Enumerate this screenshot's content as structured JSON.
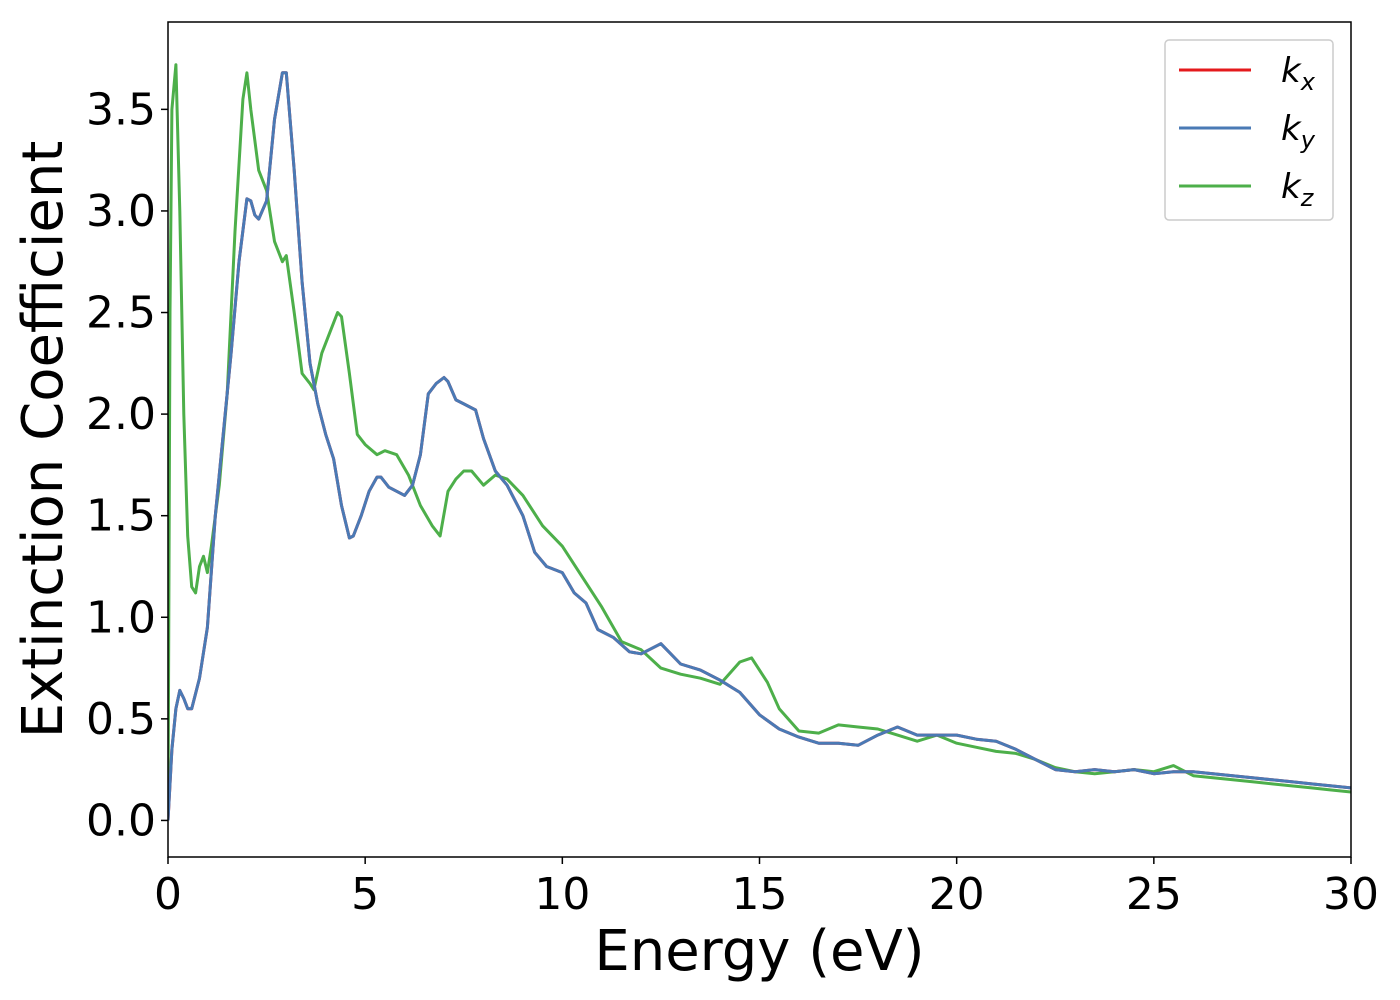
{
  "chart_data": {
    "type": "line",
    "title": "",
    "xlabel": "Energy (eV)",
    "ylabel": "Extinction Coefficient",
    "xlim": [
      0,
      30
    ],
    "ylim": [
      -0.18,
      3.93
    ],
    "xticks": [
      0,
      5,
      10,
      15,
      20,
      25,
      30
    ],
    "xtick_labels": [
      "0",
      "5",
      "10",
      "15",
      "20",
      "25",
      "30"
    ],
    "yticks": [
      0.0,
      0.5,
      1.0,
      1.5,
      2.0,
      2.5,
      3.0,
      3.5
    ],
    "ytick_labels": [
      "0.0",
      "0.5",
      "1.0",
      "1.5",
      "2.0",
      "2.5",
      "3.0",
      "3.5"
    ],
    "grid": false,
    "legend_position": "top-right",
    "series": [
      {
        "name": "k_x",
        "label_base": "k",
        "label_sub": "x",
        "color": "#e41a1c",
        "x": [
          0,
          0.1,
          0.2,
          0.3,
          0.4,
          0.5,
          0.6,
          0.8,
          1.0,
          1.2,
          1.4,
          1.6,
          1.8,
          2.0,
          2.1,
          2.2,
          2.3,
          2.5,
          2.7,
          2.9,
          3.0,
          3.2,
          3.4,
          3.6,
          3.8,
          4.0,
          4.2,
          4.4,
          4.6,
          4.7,
          4.9,
          5.1,
          5.3,
          5.4,
          5.6,
          5.8,
          6.0,
          6.2,
          6.4,
          6.6,
          6.8,
          7.0,
          7.1,
          7.3,
          7.5,
          7.8,
          8.0,
          8.3,
          8.6,
          9.0,
          9.3,
          9.6,
          10.0,
          10.3,
          10.6,
          10.9,
          11.3,
          11.7,
          12.0,
          12.5,
          13.0,
          13.5,
          14.0,
          14.5,
          15.0,
          15.5,
          16.0,
          16.5,
          17.0,
          17.5,
          18.0,
          18.5,
          19.0,
          19.5,
          20.0,
          20.5,
          21.0,
          21.5,
          22.0,
          22.5,
          23.0,
          23.5,
          24.0,
          24.5,
          25.0,
          25.5,
          26.0,
          26.5,
          27.0,
          27.5,
          28.0,
          28.5,
          29.0,
          29.5,
          30.0
        ],
        "y": [
          0.0,
          0.35,
          0.55,
          0.64,
          0.6,
          0.55,
          0.55,
          0.7,
          0.95,
          1.5,
          1.9,
          2.3,
          2.75,
          3.06,
          3.05,
          2.98,
          2.96,
          3.05,
          3.45,
          3.68,
          3.68,
          3.2,
          2.65,
          2.25,
          2.05,
          1.9,
          1.78,
          1.55,
          1.39,
          1.4,
          1.5,
          1.62,
          1.69,
          1.69,
          1.64,
          1.62,
          1.6,
          1.65,
          1.8,
          2.1,
          2.15,
          2.18,
          2.16,
          2.07,
          2.05,
          2.02,
          1.88,
          1.72,
          1.65,
          1.5,
          1.32,
          1.25,
          1.22,
          1.12,
          1.07,
          0.94,
          0.9,
          0.83,
          0.82,
          0.87,
          0.77,
          0.74,
          0.69,
          0.63,
          0.52,
          0.45,
          0.41,
          0.38,
          0.38,
          0.37,
          0.42,
          0.46,
          0.42,
          0.42,
          0.42,
          0.4,
          0.39,
          0.35,
          0.3,
          0.25,
          0.24,
          0.25,
          0.24,
          0.25,
          0.23,
          0.24,
          0.24,
          0.23,
          0.22,
          0.21,
          0.2,
          0.19,
          0.18,
          0.17,
          0.16
        ]
      },
      {
        "name": "k_y",
        "label_base": "k",
        "label_sub": "y",
        "color": "#4a7ab5",
        "x": [
          0,
          0.1,
          0.2,
          0.3,
          0.4,
          0.5,
          0.6,
          0.8,
          1.0,
          1.2,
          1.4,
          1.6,
          1.8,
          2.0,
          2.1,
          2.2,
          2.3,
          2.5,
          2.7,
          2.9,
          3.0,
          3.2,
          3.4,
          3.6,
          3.8,
          4.0,
          4.2,
          4.4,
          4.6,
          4.7,
          4.9,
          5.1,
          5.3,
          5.4,
          5.6,
          5.8,
          6.0,
          6.2,
          6.4,
          6.6,
          6.8,
          7.0,
          7.1,
          7.3,
          7.5,
          7.8,
          8.0,
          8.3,
          8.6,
          9.0,
          9.3,
          9.6,
          10.0,
          10.3,
          10.6,
          10.9,
          11.3,
          11.7,
          12.0,
          12.5,
          13.0,
          13.5,
          14.0,
          14.5,
          15.0,
          15.5,
          16.0,
          16.5,
          17.0,
          17.5,
          18.0,
          18.5,
          19.0,
          19.5,
          20.0,
          20.5,
          21.0,
          21.5,
          22.0,
          22.5,
          23.0,
          23.5,
          24.0,
          24.5,
          25.0,
          25.5,
          26.0,
          26.5,
          27.0,
          27.5,
          28.0,
          28.5,
          29.0,
          29.5,
          30.0
        ],
        "y": [
          0.0,
          0.35,
          0.55,
          0.64,
          0.6,
          0.55,
          0.55,
          0.7,
          0.95,
          1.5,
          1.9,
          2.3,
          2.75,
          3.06,
          3.05,
          2.98,
          2.96,
          3.05,
          3.45,
          3.68,
          3.68,
          3.2,
          2.65,
          2.25,
          2.05,
          1.9,
          1.78,
          1.55,
          1.39,
          1.4,
          1.5,
          1.62,
          1.69,
          1.69,
          1.64,
          1.62,
          1.6,
          1.65,
          1.8,
          2.1,
          2.15,
          2.18,
          2.16,
          2.07,
          2.05,
          2.02,
          1.88,
          1.72,
          1.65,
          1.5,
          1.32,
          1.25,
          1.22,
          1.12,
          1.07,
          0.94,
          0.9,
          0.83,
          0.82,
          0.87,
          0.77,
          0.74,
          0.69,
          0.63,
          0.52,
          0.45,
          0.41,
          0.38,
          0.38,
          0.37,
          0.42,
          0.46,
          0.42,
          0.42,
          0.42,
          0.4,
          0.39,
          0.35,
          0.3,
          0.25,
          0.24,
          0.25,
          0.24,
          0.25,
          0.23,
          0.24,
          0.24,
          0.23,
          0.22,
          0.21,
          0.2,
          0.19,
          0.18,
          0.17,
          0.16
        ]
      },
      {
        "name": "k_z",
        "label_base": "k",
        "label_sub": "z",
        "color": "#4daf4a",
        "x": [
          0,
          0.05,
          0.1,
          0.2,
          0.3,
          0.4,
          0.5,
          0.6,
          0.7,
          0.8,
          0.9,
          1.0,
          1.1,
          1.3,
          1.5,
          1.7,
          1.9,
          2.0,
          2.1,
          2.3,
          2.5,
          2.7,
          2.9,
          3.0,
          3.2,
          3.4,
          3.6,
          3.7,
          3.9,
          4.1,
          4.3,
          4.4,
          4.6,
          4.8,
          5.0,
          5.3,
          5.5,
          5.8,
          6.1,
          6.4,
          6.7,
          6.9,
          7.1,
          7.3,
          7.5,
          7.7,
          8.0,
          8.3,
          8.6,
          9.0,
          9.5,
          10.0,
          10.5,
          11.0,
          11.5,
          12.0,
          12.5,
          13.0,
          13.5,
          14.0,
          14.5,
          14.8,
          15.2,
          15.5,
          16.0,
          16.5,
          17.0,
          17.5,
          18.0,
          18.5,
          19.0,
          19.5,
          20.0,
          20.5,
          21.0,
          21.5,
          22.0,
          22.5,
          23.0,
          23.5,
          24.0,
          24.5,
          25.0,
          25.5,
          26.0,
          26.5,
          27.0,
          27.5,
          28.0,
          28.5,
          29.0,
          29.5,
          30.0
        ],
        "y": [
          0.0,
          2.5,
          3.5,
          3.72,
          3.0,
          2.0,
          1.4,
          1.15,
          1.12,
          1.25,
          1.3,
          1.22,
          1.35,
          1.65,
          2.1,
          2.9,
          3.55,
          3.68,
          3.5,
          3.2,
          3.1,
          2.85,
          2.75,
          2.78,
          2.5,
          2.2,
          2.15,
          2.12,
          2.3,
          2.4,
          2.5,
          2.48,
          2.2,
          1.9,
          1.85,
          1.8,
          1.82,
          1.8,
          1.7,
          1.55,
          1.45,
          1.4,
          1.62,
          1.68,
          1.72,
          1.72,
          1.65,
          1.7,
          1.68,
          1.6,
          1.45,
          1.35,
          1.2,
          1.05,
          0.88,
          0.84,
          0.75,
          0.72,
          0.7,
          0.67,
          0.78,
          0.8,
          0.68,
          0.55,
          0.44,
          0.43,
          0.47,
          0.46,
          0.45,
          0.42,
          0.39,
          0.42,
          0.38,
          0.36,
          0.34,
          0.33,
          0.3,
          0.26,
          0.24,
          0.23,
          0.24,
          0.25,
          0.24,
          0.27,
          0.22,
          0.21,
          0.2,
          0.19,
          0.18,
          0.17,
          0.16,
          0.15,
          0.14
        ]
      }
    ]
  }
}
